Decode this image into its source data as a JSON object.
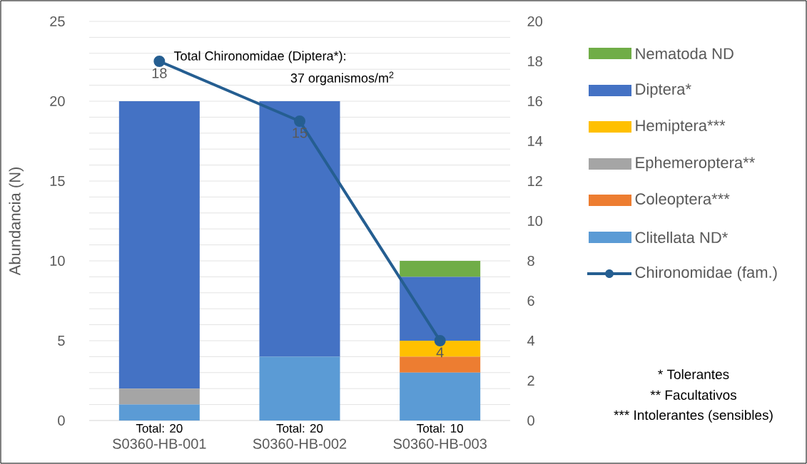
{
  "chart_data": {
    "type": "bar",
    "stacked": true,
    "ylabel": "Abundancia (N)",
    "categories": [
      "S0360-HB-001",
      "S0360-HB-002",
      "S0360-HB-003"
    ],
    "totals": [
      "Total: 20",
      "Total: 20",
      "Total: 10"
    ],
    "ylim": [
      0,
      25
    ],
    "yticks": [
      0,
      {
        "value": 1,
        "label": null
      },
      {
        "value": 2,
        "label": null
      },
      {
        "value": 3,
        "label": null
      },
      {
        "value": 4,
        "label": null
      },
      5,
      {
        "value": 6,
        "label": null
      },
      {
        "value": 7,
        "label": null
      },
      {
        "value": 8,
        "label": null
      },
      {
        "value": 9,
        "label": null
      },
      10,
      {
        "value": 11,
        "label": null
      },
      {
        "value": 12,
        "label": null
      },
      {
        "value": 13,
        "label": null
      },
      {
        "value": 14,
        "label": null
      },
      15,
      {
        "value": 16,
        "label": null
      },
      {
        "value": 17,
        "label": null
      },
      {
        "value": 18,
        "label": null
      },
      {
        "value": 19,
        "label": null
      },
      20,
      {
        "value": 21,
        "label": null
      },
      {
        "value": 22,
        "label": null
      },
      {
        "value": 23,
        "label": null
      },
      {
        "value": 24,
        "label": null
      },
      25
    ],
    "y2lim": [
      0,
      20
    ],
    "y2ticks": [
      0,
      2,
      4,
      6,
      8,
      10,
      12,
      14,
      16,
      18,
      20
    ],
    "grid": "y",
    "legend": "right",
    "series": [
      {
        "name": "Clitellata ND*",
        "color": "#5b9bd5",
        "values": [
          1,
          4,
          3
        ]
      },
      {
        "name": "Coleoptera***",
        "color": "#ed7d31",
        "values": [
          0,
          0,
          1
        ]
      },
      {
        "name": "Ephemeroptera**",
        "color": "#a5a5a5",
        "values": [
          1,
          0,
          0
        ]
      },
      {
        "name": "Hemiptera***",
        "color": "#ffc000",
        "values": [
          0,
          0,
          1
        ]
      },
      {
        "name": "Diptera*",
        "color": "#4472c4",
        "values": [
          18,
          16,
          4
        ]
      },
      {
        "name": "Nematoda ND",
        "color": "#70ad47",
        "values": [
          0,
          0,
          1
        ]
      },
      {
        "name": "Chironomidae (fam.)",
        "type": "line",
        "axis": "y2",
        "color": "#255e91",
        "marker": "circle",
        "values": [
          18,
          15,
          4
        ],
        "value_labels": [
          "18",
          "15",
          "4"
        ]
      }
    ],
    "annotations": [
      "Total Chironomidae (Diptera*):",
      "37 organismos/m$^{2}$",
      "* Tolerantes",
      "** Facultativos",
      "*** Intolerantes (sensibles)"
    ]
  }
}
